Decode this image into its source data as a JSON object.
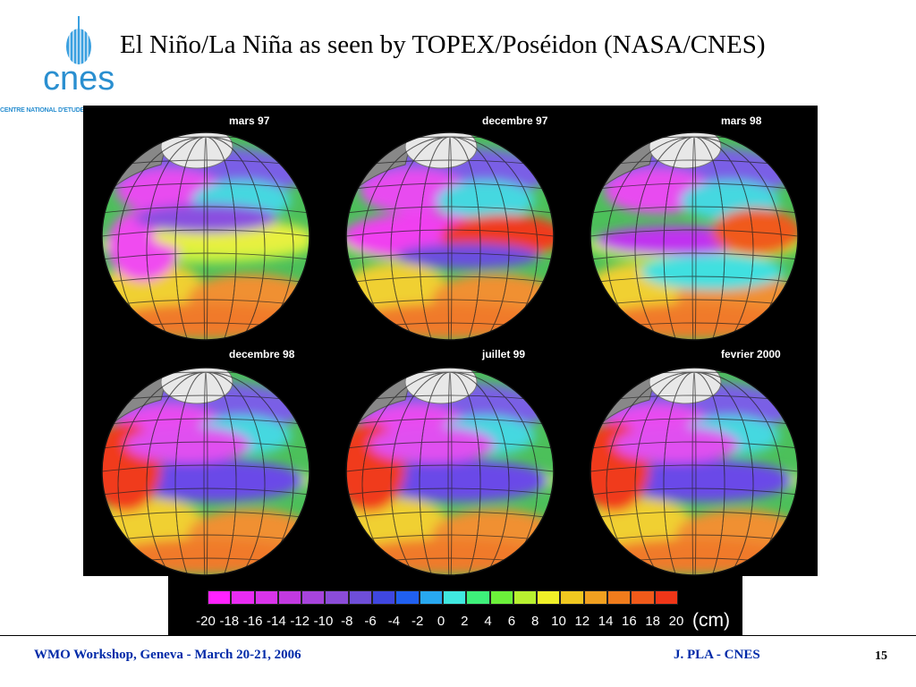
{
  "header": {
    "title": "El Niño/La Niña as seen by TOPEX/Poséidon (NASA/CNES)",
    "logo_text": "cnes",
    "logo_subtitle": "CENTRE NATIONAL D'ETUDES SPATIALES"
  },
  "globes": [
    {
      "label": "mars 97",
      "pattern": "mixed"
    },
    {
      "label": "decembre 97",
      "pattern": "elnino"
    },
    {
      "label": "mars 98",
      "pattern": "elnino_weak"
    },
    {
      "label": "decembre 98",
      "pattern": "lanina"
    },
    {
      "label": "juillet 99",
      "pattern": "lanina"
    },
    {
      "label": "fevrier 2000",
      "pattern": "lanina"
    }
  ],
  "scale": {
    "ticks": [
      "-20",
      "-18",
      "-16",
      "-14",
      "-12",
      "-10",
      "-8",
      "-6",
      "-4",
      "-2",
      "0",
      "2",
      "4",
      "6",
      "8",
      "10",
      "12",
      "14",
      "16",
      "18",
      "20"
    ],
    "unit": "(cm)",
    "colors": [
      "#ff22ff",
      "#e82cf2",
      "#d934ea",
      "#c23ae0",
      "#a744dc",
      "#8b4cd8",
      "#6e4ed8",
      "#3f47e0",
      "#2060f0",
      "#28a8f0",
      "#40e8e0",
      "#3ef07a",
      "#6cf03a",
      "#b8f030",
      "#f0f028",
      "#f0c820",
      "#f0a020",
      "#f07c1c",
      "#f05a1a",
      "#f03618",
      "#e01818"
    ]
  },
  "footer": {
    "left": "WMO Workshop, Geneva - March 20-21, 2006",
    "author": "J. PLA - CNES",
    "page": "15"
  }
}
